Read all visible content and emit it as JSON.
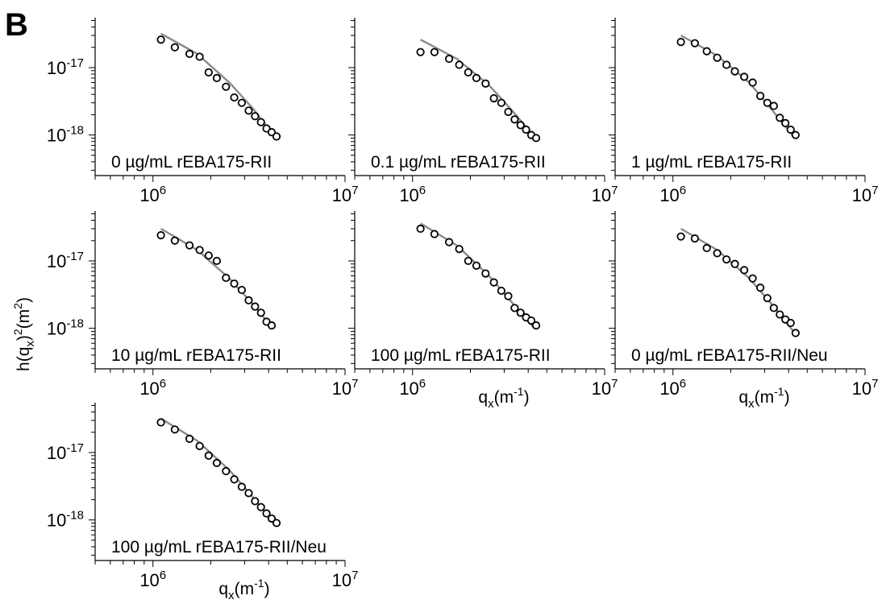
{
  "figure": {
    "panel_letter": "B",
    "ylabel": {
      "base": "h(q",
      "sub": "x",
      "mid": ")",
      "sup": "2",
      "unit_open": "(m",
      "unit_sup": "2",
      "unit_close": ")"
    },
    "xlabel": {
      "base": "q",
      "sub": "x",
      "unit_open": "(m",
      "unit_sup": "-1",
      "unit_close": ")"
    }
  },
  "chart_data": [
    {
      "type": "scatter",
      "label": "0 µg/mL rEBA175-RII",
      "x_scale": "log",
      "y_scale": "log",
      "xlim": [
        500000,
        10000000
      ],
      "ylim": [
        2.5e-19,
        5.5e-17
      ],
      "x_ticks": [
        {
          "base": "10",
          "exp": "6"
        },
        {
          "base": "10",
          "exp": "7"
        }
      ],
      "y_ticks": [
        {
          "base": "10",
          "exp": "-17"
        },
        {
          "base": "10",
          "exp": "-18"
        }
      ],
      "show_xlabel": false,
      "points": [
        [
          1100000,
          2.6e-17
        ],
        [
          1300000,
          2e-17
        ],
        [
          1550000,
          1.6e-17
        ],
        [
          1750000,
          1.45e-17
        ],
        [
          1950000,
          8.5e-18
        ],
        [
          2150000,
          7e-18
        ],
        [
          2400000,
          5.2e-18
        ],
        [
          2650000,
          3.6e-18
        ],
        [
          2900000,
          3e-18
        ],
        [
          3150000,
          2.3e-18
        ],
        [
          3400000,
          1.9e-18
        ],
        [
          3650000,
          1.55e-18
        ],
        [
          3900000,
          1.25e-18
        ],
        [
          4150000,
          1.1e-18
        ],
        [
          4400000,
          9.5e-19
        ]
      ],
      "fit": [
        [
          1100000,
          3.2e-17
        ],
        [
          1700000,
          1.6e-17
        ],
        [
          2500000,
          6e-18
        ],
        [
          3300000,
          2.5e-18
        ],
        [
          4300000,
          9.5e-19
        ]
      ]
    },
    {
      "type": "scatter",
      "label": "0.1 µg/mL rEBA175-RII",
      "x_scale": "log",
      "y_scale": "log",
      "xlim": [
        500000,
        10000000
      ],
      "ylim": [
        2.5e-19,
        5.5e-17
      ],
      "x_ticks": [
        {
          "base": "10",
          "exp": "6"
        },
        {
          "base": "10",
          "exp": "7"
        }
      ],
      "y_ticks": [],
      "show_xlabel": false,
      "points": [
        [
          1100000,
          1.7e-17
        ],
        [
          1300000,
          1.7e-17
        ],
        [
          1550000,
          1.35e-17
        ],
        [
          1750000,
          1.1e-17
        ],
        [
          1950000,
          8.5e-18
        ],
        [
          2150000,
          7e-18
        ],
        [
          2400000,
          5.8e-18
        ],
        [
          2650000,
          3.5e-18
        ],
        [
          2900000,
          3e-18
        ],
        [
          3150000,
          2.2e-18
        ],
        [
          3400000,
          1.7e-18
        ],
        [
          3650000,
          1.4e-18
        ],
        [
          3900000,
          1.2e-18
        ],
        [
          4150000,
          1e-18
        ],
        [
          4400000,
          9e-19
        ]
      ],
      "fit": [
        [
          1100000,
          2.6e-17
        ],
        [
          1700000,
          1.35e-17
        ],
        [
          2500000,
          5.5e-18
        ],
        [
          3300000,
          2.3e-18
        ],
        [
          4300000,
          9.5e-19
        ]
      ]
    },
    {
      "type": "scatter",
      "label": "1 µg/mL rEBA175-RII",
      "x_scale": "log",
      "y_scale": "log",
      "xlim": [
        500000,
        10000000
      ],
      "ylim": [
        2.5e-19,
        5.5e-17
      ],
      "x_ticks": [
        {
          "base": "10",
          "exp": "6"
        },
        {
          "base": "10",
          "exp": "7"
        }
      ],
      "y_ticks": [],
      "show_xlabel": false,
      "points": [
        [
          1100000,
          2.4e-17
        ],
        [
          1300000,
          2.3e-17
        ],
        [
          1500000,
          1.75e-17
        ],
        [
          1700000,
          1.4e-17
        ],
        [
          1900000,
          1.1e-17
        ],
        [
          2100000,
          8.8e-18
        ],
        [
          2350000,
          7.3e-18
        ],
        [
          2600000,
          6e-18
        ],
        [
          2850000,
          3.8e-18
        ],
        [
          3100000,
          3e-18
        ],
        [
          3350000,
          2.7e-18
        ],
        [
          3600000,
          1.8e-18
        ],
        [
          3850000,
          1.5e-18
        ],
        [
          4100000,
          1.2e-18
        ],
        [
          4350000,
          1e-18
        ]
      ],
      "fit": [
        [
          1100000,
          3e-17
        ],
        [
          1700000,
          1.5e-17
        ],
        [
          2500000,
          6e-18
        ],
        [
          3300000,
          2.3e-18
        ],
        [
          4300000,
          9e-19
        ]
      ]
    },
    {
      "type": "scatter",
      "label": "10 µg/mL rEBA175-RII",
      "x_scale": "log",
      "y_scale": "log",
      "xlim": [
        500000,
        10000000
      ],
      "ylim": [
        2.5e-19,
        5.5e-17
      ],
      "x_ticks": [
        {
          "base": "10",
          "exp": "6"
        },
        {
          "base": "10",
          "exp": "7"
        }
      ],
      "y_ticks": [
        {
          "base": "10",
          "exp": "-17"
        },
        {
          "base": "10",
          "exp": "-18"
        }
      ],
      "show_xlabel": false,
      "points": [
        [
          1100000,
          2.4e-17
        ],
        [
          1300000,
          2e-17
        ],
        [
          1550000,
          1.7e-17
        ],
        [
          1750000,
          1.45e-17
        ],
        [
          1950000,
          1.2e-17
        ],
        [
          2150000,
          1e-17
        ],
        [
          2400000,
          5.6e-18
        ],
        [
          2650000,
          4.6e-18
        ],
        [
          2900000,
          3.7e-18
        ],
        [
          3150000,
          2.6e-18
        ],
        [
          3400000,
          2.1e-18
        ],
        [
          3650000,
          1.7e-18
        ],
        [
          3900000,
          1.25e-18
        ],
        [
          4150000,
          1.1e-18
        ]
      ],
      "fit": [
        [
          1100000,
          3e-17
        ],
        [
          1700000,
          1.45e-17
        ],
        [
          2500000,
          5.5e-18
        ],
        [
          3300000,
          2.3e-18
        ],
        [
          4200000,
          1e-18
        ]
      ]
    },
    {
      "type": "scatter",
      "label": "100 µg/mL rEBA175-RII",
      "x_scale": "log",
      "y_scale": "log",
      "xlim": [
        500000,
        10000000
      ],
      "ylim": [
        2.5e-19,
        5.5e-17
      ],
      "x_ticks": [
        {
          "base": "10",
          "exp": "6"
        },
        {
          "base": "10",
          "exp": "7"
        }
      ],
      "y_ticks": [],
      "show_xlabel": true,
      "points": [
        [
          1100000,
          3e-17
        ],
        [
          1300000,
          2.5e-17
        ],
        [
          1550000,
          1.9e-17
        ],
        [
          1750000,
          1.5e-17
        ],
        [
          1950000,
          1e-17
        ],
        [
          2150000,
          8.5e-18
        ],
        [
          2400000,
          6.5e-18
        ],
        [
          2650000,
          4.8e-18
        ],
        [
          2900000,
          3.6e-18
        ],
        [
          3150000,
          3e-18
        ],
        [
          3400000,
          2e-18
        ],
        [
          3650000,
          1.7e-18
        ],
        [
          3900000,
          1.45e-18
        ],
        [
          4150000,
          1.3e-18
        ],
        [
          4400000,
          1.1e-18
        ]
      ],
      "fit": [
        [
          1100000,
          3.6e-17
        ],
        [
          1700000,
          1.7e-17
        ],
        [
          2500000,
          6e-18
        ],
        [
          3300000,
          2.4e-18
        ],
        [
          4300000,
          1e-18
        ]
      ]
    },
    {
      "type": "scatter",
      "label": "0 µg/mL rEBA175-RII/Neu",
      "x_scale": "log",
      "y_scale": "log",
      "xlim": [
        500000,
        10000000
      ],
      "ylim": [
        2.5e-19,
        5.5e-17
      ],
      "x_ticks": [
        {
          "base": "10",
          "exp": "6"
        },
        {
          "base": "10",
          "exp": "7"
        }
      ],
      "y_ticks": [],
      "show_xlabel": true,
      "points": [
        [
          1100000,
          2.3e-17
        ],
        [
          1300000,
          2.15e-17
        ],
        [
          1500000,
          1.55e-17
        ],
        [
          1700000,
          1.3e-17
        ],
        [
          1900000,
          1.05e-17
        ],
        [
          2100000,
          9e-18
        ],
        [
          2350000,
          7.3e-18
        ],
        [
          2600000,
          5.5e-18
        ],
        [
          2850000,
          4e-18
        ],
        [
          3100000,
          2.8e-18
        ],
        [
          3350000,
          2e-18
        ],
        [
          3600000,
          1.6e-18
        ],
        [
          3850000,
          1.35e-18
        ],
        [
          4100000,
          1.2e-18
        ],
        [
          4350000,
          8.5e-19
        ]
      ],
      "fit": [
        [
          1100000,
          3e-17
        ],
        [
          1700000,
          1.45e-17
        ],
        [
          2500000,
          5.5e-18
        ],
        [
          3300000,
          2.2e-18
        ],
        [
          4300000,
          8.5e-19
        ]
      ]
    },
    {
      "type": "scatter",
      "label": "100 µg/mL rEBA175-RII/Neu",
      "x_scale": "log",
      "y_scale": "log",
      "xlim": [
        500000,
        10000000
      ],
      "ylim": [
        2.5e-19,
        5.5e-17
      ],
      "x_ticks": [
        {
          "base": "10",
          "exp": "6"
        },
        {
          "base": "10",
          "exp": "7"
        }
      ],
      "y_ticks": [
        {
          "base": "10",
          "exp": "-17"
        },
        {
          "base": "10",
          "exp": "-18"
        }
      ],
      "show_xlabel": true,
      "points": [
        [
          1100000,
          2.8e-17
        ],
        [
          1300000,
          2.2e-17
        ],
        [
          1550000,
          1.6e-17
        ],
        [
          1750000,
          1.25e-17
        ],
        [
          1950000,
          9e-18
        ],
        [
          2150000,
          7e-18
        ],
        [
          2400000,
          5.3e-18
        ],
        [
          2650000,
          4e-18
        ],
        [
          2900000,
          3.1e-18
        ],
        [
          3150000,
          2.5e-18
        ],
        [
          3400000,
          1.9e-18
        ],
        [
          3650000,
          1.55e-18
        ],
        [
          3900000,
          1.25e-18
        ],
        [
          4150000,
          1.05e-18
        ],
        [
          4400000,
          9e-19
        ]
      ],
      "fit": [
        [
          1100000,
          3.2e-17
        ],
        [
          1700000,
          1.5e-17
        ],
        [
          2500000,
          5.5e-18
        ],
        [
          3300000,
          2.2e-18
        ],
        [
          4300000,
          9e-19
        ]
      ]
    }
  ]
}
